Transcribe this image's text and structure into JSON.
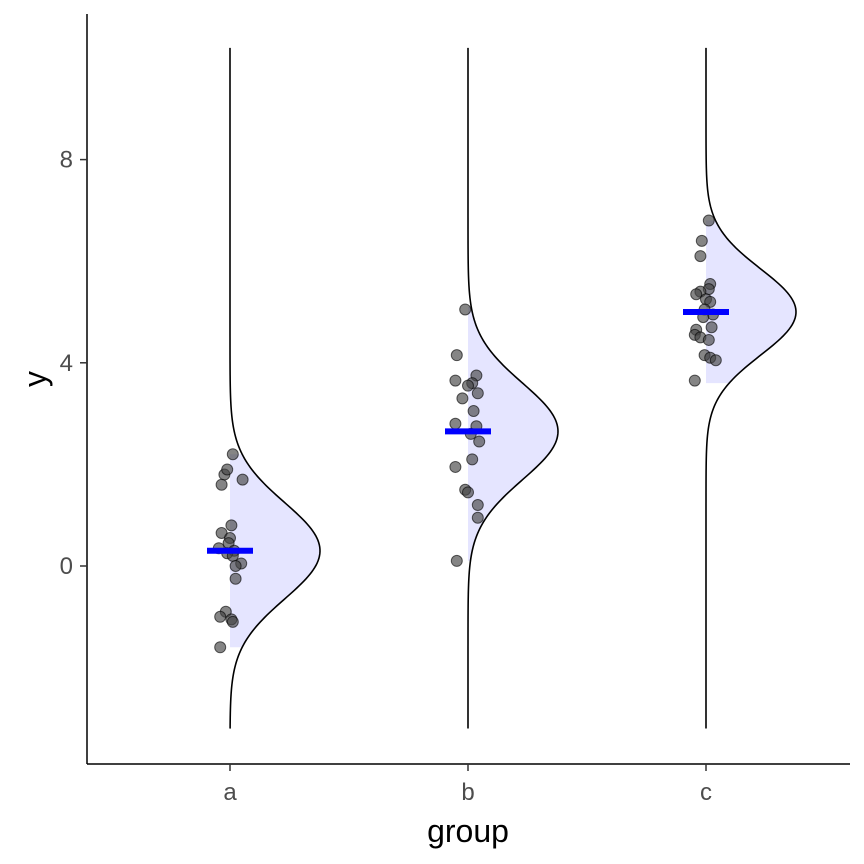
{
  "chart_data": {
    "type": "half-violin-dotplot",
    "title": "",
    "xlabel": "group",
    "ylabel": "y",
    "categories": [
      "a",
      "b",
      "c"
    ],
    "ylim": [
      -3.9,
      10.7
    ],
    "yticks": [
      0,
      4,
      8
    ],
    "grid": false,
    "legend": "none",
    "colors": {
      "fill": "#e5e5ff",
      "outline": "#000000",
      "point": "#444444",
      "mean_bar": "#0000ff"
    },
    "groups": [
      {
        "category": "a",
        "density": {
          "mean": 0.3,
          "sd": 0.95,
          "min": -3.2,
          "max": 10.2
        },
        "data_range": [
          -1.6,
          2.2
        ],
        "mean": 0.3,
        "points": [
          2.2,
          1.8,
          1.9,
          1.7,
          1.6,
          0.8,
          0.65,
          0.55,
          0.45,
          0.35,
          0.3,
          0.25,
          0.2,
          0.05,
          0.0,
          -0.25,
          -0.9,
          -1.0,
          -1.05,
          -1.1,
          -1.6
        ],
        "jitter": [
          0.1,
          -0.2,
          -0.1,
          0.45,
          -0.3,
          0.05,
          -0.3,
          0.0,
          -0.05,
          -0.4,
          0.15,
          -0.1,
          0.1,
          0.4,
          0.2,
          0.2,
          -0.15,
          -0.35,
          0.05,
          0.1,
          -0.35
        ]
      },
      {
        "category": "b",
        "density": {
          "mean": 2.65,
          "sd": 0.95,
          "min": -3.2,
          "max": 10.2
        },
        "data_range": [
          0.1,
          5.1
        ],
        "mean": 2.65,
        "points": [
          5.05,
          4.15,
          3.75,
          3.65,
          3.6,
          3.55,
          3.4,
          3.3,
          3.05,
          2.8,
          2.75,
          2.6,
          2.45,
          2.1,
          1.95,
          1.5,
          1.45,
          1.2,
          0.95,
          0.1
        ],
        "jitter": [
          -0.1,
          -0.4,
          0.3,
          -0.45,
          0.15,
          0.0,
          0.35,
          -0.2,
          0.2,
          -0.45,
          0.3,
          0.1,
          0.4,
          0.15,
          -0.45,
          -0.1,
          0.0,
          0.35,
          0.35,
          -0.4
        ]
      },
      {
        "category": "c",
        "density": {
          "mean": 5.0,
          "sd": 0.85,
          "min": -3.2,
          "max": 10.2
        },
        "data_range": [
          3.6,
          6.8
        ],
        "mean": 5.0,
        "points": [
          6.8,
          6.4,
          6.1,
          5.55,
          5.45,
          5.4,
          5.35,
          5.25,
          5.2,
          5.05,
          4.95,
          4.9,
          4.7,
          4.65,
          4.55,
          4.5,
          4.45,
          4.15,
          4.1,
          4.05,
          3.65
        ],
        "jitter": [
          0.1,
          -0.15,
          -0.2,
          0.15,
          0.1,
          -0.2,
          -0.35,
          0.0,
          0.15,
          -0.05,
          0.25,
          -0.1,
          0.2,
          -0.35,
          -0.4,
          -0.2,
          0.1,
          -0.05,
          0.15,
          0.35,
          -0.4
        ]
      }
    ]
  }
}
